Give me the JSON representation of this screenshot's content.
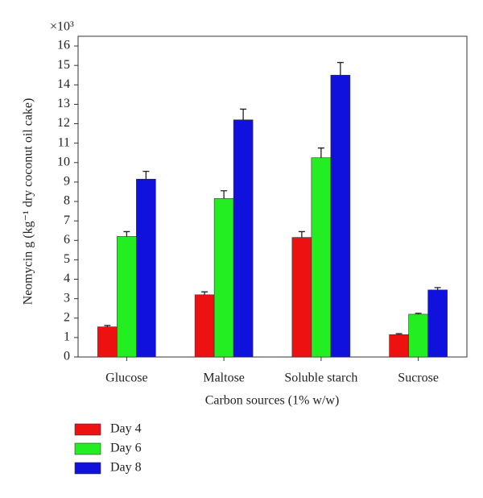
{
  "chart_data": {
    "type": "bar",
    "ylabel": "Neomycin g (kg⁻¹ dry coconut oil cake)",
    "xlabel": "Carbon sources (1% w/w)",
    "multiplier": "×10³",
    "categories": [
      "Glucose",
      "Maltose",
      "Soluble starch",
      "Sucrose"
    ],
    "series": [
      {
        "name": "Day 4",
        "color": "#ee1111",
        "values": [
          1.55,
          3.2,
          6.15,
          1.15
        ],
        "errors": [
          0.07,
          0.15,
          0.3,
          0.05
        ]
      },
      {
        "name": "Day 6",
        "color": "#22ee22",
        "values": [
          6.2,
          8.15,
          10.25,
          2.2
        ],
        "errors": [
          0.25,
          0.4,
          0.5,
          0.05
        ]
      },
      {
        "name": "Day 8",
        "color": "#1111dd",
        "values": [
          9.15,
          12.2,
          14.5,
          3.45
        ],
        "errors": [
          0.4,
          0.55,
          0.65,
          0.12
        ]
      }
    ],
    "ylim": [
      0,
      16.5
    ],
    "yticks": [
      0,
      1,
      2,
      3,
      4,
      5,
      6,
      7,
      8,
      9,
      10,
      11,
      12,
      13,
      14,
      15,
      16
    ],
    "legend": "bottom-left"
  }
}
